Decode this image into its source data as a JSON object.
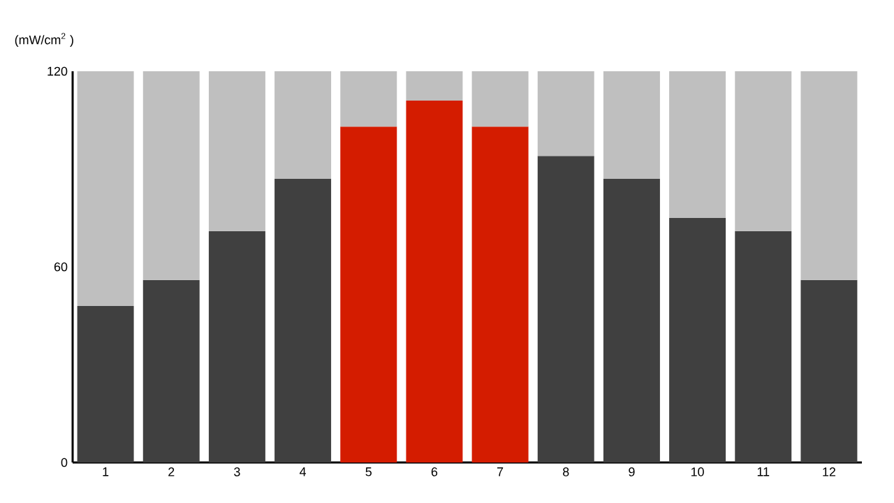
{
  "chart_data": {
    "type": "bar",
    "ylabel": "(mW/cm$^{2}$ )",
    "stacked": true,
    "categories": [
      "1",
      "2",
      "3",
      "4",
      "5",
      "6",
      "7",
      "8",
      "9",
      "10",
      "11",
      "12"
    ],
    "series": [
      {
        "colors": [
          "#404040",
          "#404040",
          "#404040",
          "#404040",
          "#d41c00",
          "#d41c00",
          "#d41c00",
          "#404040",
          "#404040",
          "#404040",
          "#404040",
          "#404040"
        ],
        "values": [
          48,
          56,
          71,
          87,
          103,
          111,
          103,
          94,
          87,
          75,
          71,
          56
        ]
      },
      {
        "color": "#bfbfbf",
        "values": [
          72,
          64,
          49,
          33,
          17,
          9,
          17,
          26,
          33,
          45,
          49,
          64
        ]
      }
    ],
    "ylim": [
      0,
      120
    ],
    "yticks": [
      0,
      60,
      120
    ]
  }
}
